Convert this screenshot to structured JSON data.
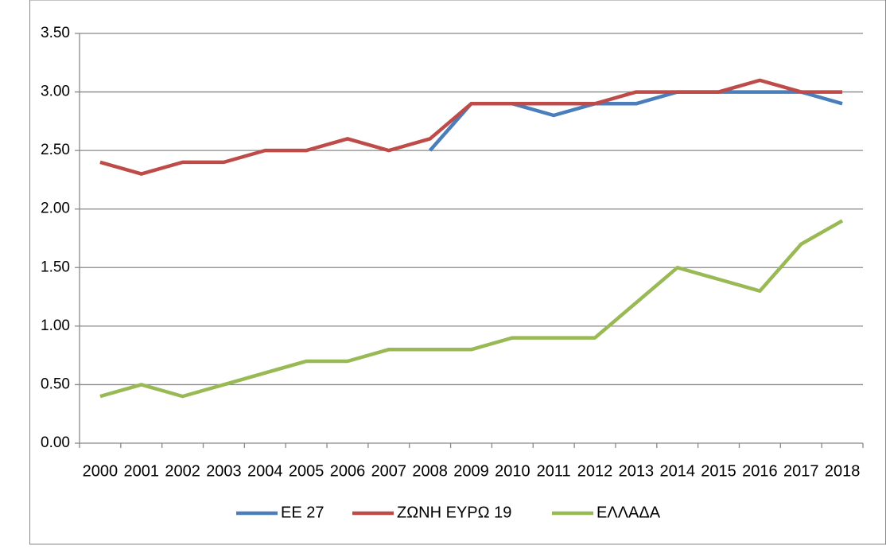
{
  "chart_data": {
    "type": "line",
    "categories": [
      "2000",
      "2001",
      "2002",
      "2003",
      "2004",
      "2005",
      "2006",
      "2007",
      "2008",
      "2009",
      "2010",
      "2011",
      "2012",
      "2013",
      "2014",
      "2015",
      "2016",
      "2017",
      "2018"
    ],
    "series": [
      {
        "name": "ΕΕ 27",
        "color": "#4a7ebb",
        "values": [
          null,
          null,
          null,
          null,
          null,
          null,
          null,
          null,
          2.5,
          2.9,
          2.9,
          2.8,
          2.9,
          2.9,
          3.0,
          3.0,
          3.0,
          3.0,
          2.9
        ]
      },
      {
        "name": "ΖΩΝΗ ΕΥΡΩ 19",
        "color": "#be4b48",
        "values": [
          2.4,
          2.3,
          2.4,
          2.4,
          2.5,
          2.5,
          2.6,
          2.5,
          2.6,
          2.9,
          2.9,
          2.9,
          2.9,
          3.0,
          3.0,
          3.0,
          3.1,
          3.0,
          3.0
        ]
      },
      {
        "name": "ΕΛΛΑΔΑ",
        "color": "#98b954",
        "values": [
          0.4,
          0.5,
          0.4,
          0.5,
          0.6,
          0.7,
          0.7,
          0.8,
          0.8,
          0.8,
          0.9,
          0.9,
          0.9,
          1.2,
          1.5,
          1.4,
          1.3,
          1.7,
          1.9
        ]
      }
    ],
    "ylim": [
      0,
      3.5
    ],
    "yticks": [
      {
        "value": 0,
        "label": "0.00"
      },
      {
        "value": 0.5,
        "label": "0.50"
      },
      {
        "value": 1,
        "label": "1.00"
      },
      {
        "value": 1.5,
        "label": "1.50"
      },
      {
        "value": 2,
        "label": "2.00"
      },
      {
        "value": 2.5,
        "label": "2.50"
      },
      {
        "value": 3,
        "label": "3.00"
      },
      {
        "value": 3.5,
        "label": "3.50"
      }
    ],
    "grid": true,
    "legend": "bottom"
  }
}
